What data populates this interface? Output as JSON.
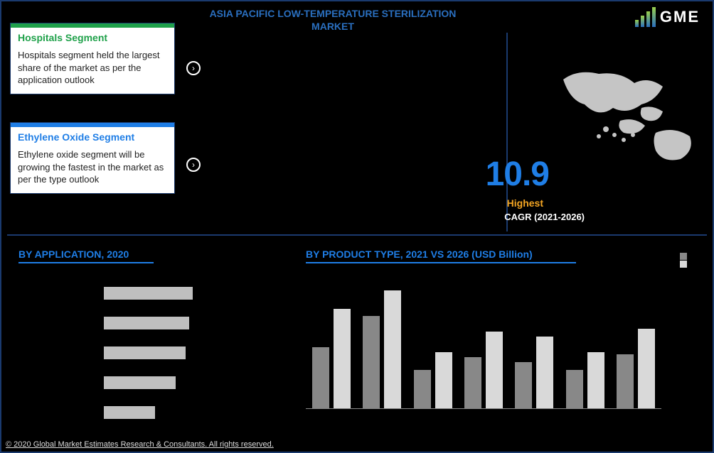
{
  "title": "ASIA PACIFIC LOW-TEMPERATURE STERILIZATION MARKET",
  "logo_text": "GME",
  "logo_bar_heights": [
    10,
    16,
    22,
    28
  ],
  "card1": {
    "title": "Hospitals Segment",
    "body": "Hospitals segment held the largest share of the market as per the application outlook",
    "accent": "#1fa14a"
  },
  "card2": {
    "title": "Ethylene Oxide Segment",
    "body": "Ethylene oxide segment will be growing the fastest in the market as per the type outlook",
    "accent": "#1f7ee6"
  },
  "chevron_glyph": "›",
  "stat": {
    "value": "10.9",
    "value_color": "#1f7ee6",
    "label_top": "Highest",
    "label_top_color": "#f5a623",
    "label_bottom": "CAGR (2021-2026)"
  },
  "section_application": {
    "title": "BY APPLICATION, 2020",
    "title_color": "#1f7ee6",
    "bars": [
      {
        "label": "",
        "grey_pct": 52,
        "black_pct": 18
      },
      {
        "label": "",
        "grey_pct": 50,
        "black_pct": 16
      },
      {
        "label": "",
        "grey_pct": 48,
        "black_pct": 14
      },
      {
        "label": "",
        "grey_pct": 42,
        "black_pct": 18
      },
      {
        "label": "",
        "grey_pct": 30,
        "black_pct": 10
      }
    ],
    "grey_color": "#bfbfbf",
    "black_color": "#000000"
  },
  "section_product": {
    "title": "BY PRODUCT TYPE, 2021 VS 2026 (USD Billion)",
    "title_color": "#1f7ee6",
    "legend_a": "",
    "legend_b": "",
    "color_a": "#888888",
    "color_b": "#d9d9d9",
    "ymax": 100,
    "groups": [
      {
        "a": 48,
        "b": 78
      },
      {
        "a": 72,
        "b": 92
      },
      {
        "a": 30,
        "b": 44
      },
      {
        "a": 40,
        "b": 60
      },
      {
        "a": 36,
        "b": 56
      },
      {
        "a": 30,
        "b": 44
      },
      {
        "a": 42,
        "b": 62
      }
    ]
  },
  "footer": "© 2020 Global Market Estimates Research & Consultants. All rights reserved."
}
